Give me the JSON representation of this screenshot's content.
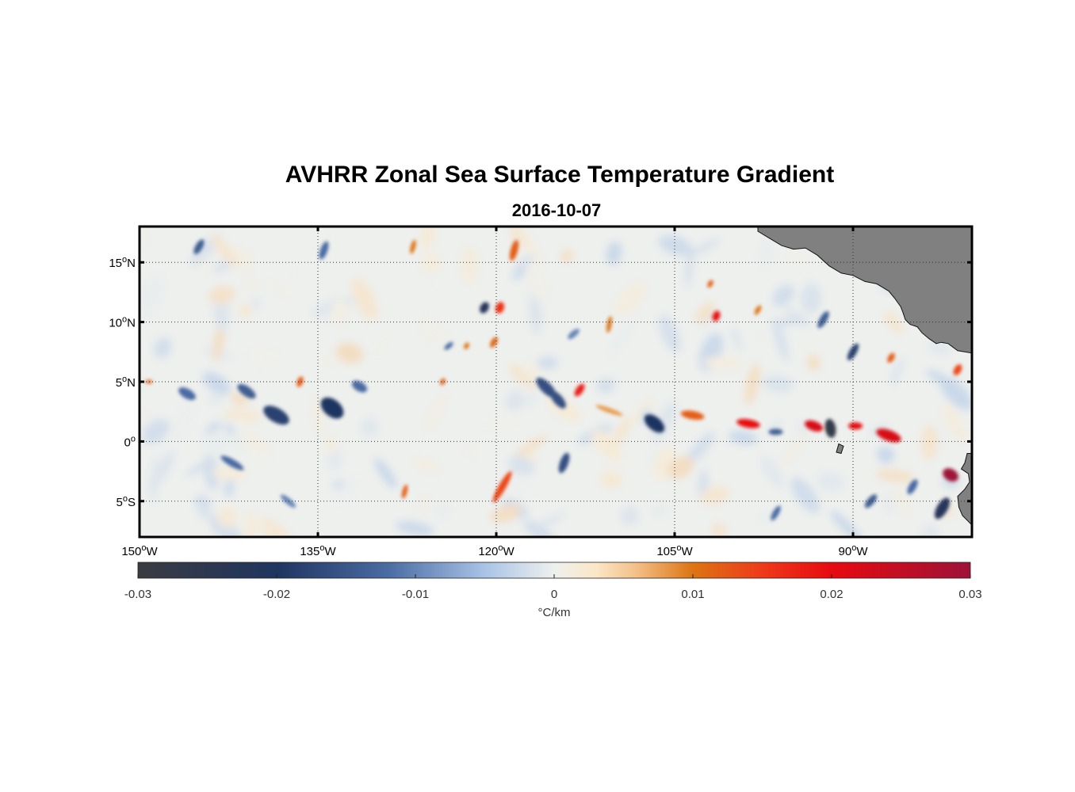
{
  "title": "AVHRR Zonal Sea Surface Temperature Gradient",
  "subtitle": "2016-10-07",
  "map": {
    "lon_range": [
      -150,
      -80
    ],
    "lat_range": [
      -8,
      18
    ],
    "lat_ticks": [
      {
        "value": 15,
        "label": "15",
        "hemi": "N"
      },
      {
        "value": 10,
        "label": "10",
        "hemi": "N"
      },
      {
        "value": 5,
        "label": "5",
        "hemi": "N"
      },
      {
        "value": 0,
        "label": "0",
        "hemi": ""
      },
      {
        "value": -5,
        "label": "5",
        "hemi": "S"
      }
    ],
    "lon_ticks": [
      {
        "value": -150,
        "label": "150",
        "hemi": "W"
      },
      {
        "value": -135,
        "label": "135",
        "hemi": "W"
      },
      {
        "value": -120,
        "label": "120",
        "hemi": "W"
      },
      {
        "value": -105,
        "label": "105",
        "hemi": "W"
      },
      {
        "value": -90,
        "label": "90",
        "hemi": "W"
      }
    ],
    "grid": "dotted",
    "land_color": "#808080",
    "features": [
      {
        "lon": -138.5,
        "lat": 2.2,
        "value": -0.018,
        "w": 2.4,
        "h": 1.2,
        "angle": -30
      },
      {
        "lon": -133.8,
        "lat": 2.8,
        "value": -0.02,
        "w": 2.2,
        "h": 1.4,
        "angle": -40
      },
      {
        "lon": -131.5,
        "lat": 4.6,
        "value": -0.012,
        "w": 1.4,
        "h": 0.8,
        "angle": -30
      },
      {
        "lon": -141.0,
        "lat": 4.2,
        "value": -0.014,
        "w": 1.8,
        "h": 0.8,
        "angle": -35
      },
      {
        "lon": -146.0,
        "lat": 4.0,
        "value": -0.012,
        "w": 1.6,
        "h": 0.8,
        "angle": -30
      },
      {
        "lon": -136.5,
        "lat": 5.0,
        "value": 0.012,
        "w": 0.9,
        "h": 0.5,
        "angle": 70
      },
      {
        "lon": -121.0,
        "lat": 11.2,
        "value": -0.022,
        "w": 1.0,
        "h": 0.7,
        "angle": 60
      },
      {
        "lon": -119.7,
        "lat": 11.2,
        "value": 0.016,
        "w": 1.0,
        "h": 0.7,
        "angle": 70
      },
      {
        "lon": -120.2,
        "lat": 8.3,
        "value": 0.011,
        "w": 1.0,
        "h": 0.5,
        "angle": 60
      },
      {
        "lon": -122.5,
        "lat": 8.0,
        "value": 0.01,
        "w": 0.6,
        "h": 0.4,
        "angle": 60
      },
      {
        "lon": -118.5,
        "lat": 16.0,
        "value": 0.012,
        "w": 1.8,
        "h": 0.6,
        "angle": 75
      },
      {
        "lon": -115.8,
        "lat": 4.5,
        "value": -0.016,
        "w": 2.2,
        "h": 0.9,
        "angle": -45
      },
      {
        "lon": -114.8,
        "lat": 3.5,
        "value": -0.016,
        "w": 1.8,
        "h": 0.8,
        "angle": -50
      },
      {
        "lon": -113.0,
        "lat": 4.3,
        "value": 0.018,
        "w": 1.2,
        "h": 0.6,
        "angle": 55
      },
      {
        "lon": -110.5,
        "lat": 2.6,
        "value": 0.008,
        "w": 2.4,
        "h": 0.4,
        "angle": -20
      },
      {
        "lon": -119.5,
        "lat": -3.8,
        "value": 0.014,
        "w": 3.0,
        "h": 0.6,
        "angle": 60
      },
      {
        "lon": -114.3,
        "lat": -1.8,
        "value": -0.016,
        "w": 1.8,
        "h": 0.7,
        "angle": 70
      },
      {
        "lon": -106.7,
        "lat": 1.5,
        "value": -0.02,
        "w": 2.0,
        "h": 1.1,
        "angle": -40
      },
      {
        "lon": -103.5,
        "lat": 2.2,
        "value": 0.012,
        "w": 2.0,
        "h": 0.7,
        "angle": -10
      },
      {
        "lon": -98.8,
        "lat": 1.5,
        "value": 0.02,
        "w": 2.0,
        "h": 0.7,
        "angle": -10
      },
      {
        "lon": -96.5,
        "lat": 0.8,
        "value": -0.014,
        "w": 1.2,
        "h": 0.5,
        "angle": 0
      },
      {
        "lon": -93.3,
        "lat": 1.3,
        "value": 0.022,
        "w": 1.6,
        "h": 0.8,
        "angle": -20
      },
      {
        "lon": -91.9,
        "lat": 1.1,
        "value": -0.028,
        "w": 0.9,
        "h": 1.6,
        "angle": 10
      },
      {
        "lon": -89.8,
        "lat": 1.3,
        "value": 0.02,
        "w": 1.2,
        "h": 0.6,
        "angle": 0
      },
      {
        "lon": -87.0,
        "lat": 0.5,
        "value": 0.022,
        "w": 2.2,
        "h": 0.9,
        "angle": -20
      },
      {
        "lon": -81.8,
        "lat": -2.8,
        "value": 0.03,
        "w": 1.4,
        "h": 1.0,
        "angle": -30
      },
      {
        "lon": -82.5,
        "lat": -5.6,
        "value": -0.022,
        "w": 2.0,
        "h": 0.9,
        "angle": 60
      },
      {
        "lon": -85.0,
        "lat": -3.8,
        "value": -0.012,
        "w": 1.4,
        "h": 0.6,
        "angle": 60
      },
      {
        "lon": -101.5,
        "lat": 10.5,
        "value": 0.02,
        "w": 0.9,
        "h": 0.6,
        "angle": 70
      },
      {
        "lon": -102.0,
        "lat": 13.2,
        "value": 0.012,
        "w": 0.7,
        "h": 0.4,
        "angle": 60
      },
      {
        "lon": -90.0,
        "lat": 7.5,
        "value": -0.018,
        "w": 1.6,
        "h": 0.6,
        "angle": 60
      },
      {
        "lon": -86.8,
        "lat": 7.0,
        "value": 0.012,
        "w": 0.9,
        "h": 0.5,
        "angle": 60
      },
      {
        "lon": -81.2,
        "lat": 6.0,
        "value": 0.014,
        "w": 1.0,
        "h": 0.6,
        "angle": 60
      },
      {
        "lon": -92.5,
        "lat": 10.2,
        "value": -0.014,
        "w": 1.6,
        "h": 0.6,
        "angle": 60
      },
      {
        "lon": -98.0,
        "lat": 11.0,
        "value": 0.01,
        "w": 0.9,
        "h": 0.4,
        "angle": 60
      },
      {
        "lon": -110.5,
        "lat": 9.8,
        "value": 0.01,
        "w": 1.4,
        "h": 0.4,
        "angle": 80
      },
      {
        "lon": -113.5,
        "lat": 9.0,
        "value": -0.01,
        "w": 1.2,
        "h": 0.5,
        "angle": 40
      },
      {
        "lon": -145.0,
        "lat": 16.3,
        "value": -0.014,
        "w": 1.4,
        "h": 0.6,
        "angle": 60
      },
      {
        "lon": -134.5,
        "lat": 16.0,
        "value": -0.012,
        "w": 1.6,
        "h": 0.6,
        "angle": 70
      },
      {
        "lon": -127.0,
        "lat": 16.3,
        "value": 0.01,
        "w": 1.2,
        "h": 0.4,
        "angle": 75
      },
      {
        "lon": -127.7,
        "lat": -4.2,
        "value": 0.012,
        "w": 1.2,
        "h": 0.4,
        "angle": 75
      },
      {
        "lon": -142.2,
        "lat": -1.8,
        "value": -0.012,
        "w": 2.2,
        "h": 0.6,
        "angle": -30
      },
      {
        "lon": -137.5,
        "lat": -5.0,
        "value": -0.01,
        "w": 1.6,
        "h": 0.5,
        "angle": -40
      },
      {
        "lon": -96.5,
        "lat": -6.0,
        "value": -0.012,
        "w": 1.4,
        "h": 0.5,
        "angle": 60
      },
      {
        "lon": -88.5,
        "lat": -5.0,
        "value": -0.014,
        "w": 1.4,
        "h": 0.6,
        "angle": 50
      },
      {
        "lon": -124.5,
        "lat": 5.0,
        "value": 0.012,
        "w": 0.6,
        "h": 0.4,
        "angle": 60
      },
      {
        "lon": -124.0,
        "lat": 8.0,
        "value": -0.012,
        "w": 0.9,
        "h": 0.4,
        "angle": 40
      },
      {
        "lon": -149.2,
        "lat": 5.0,
        "value": 0.012,
        "w": 0.6,
        "h": 0.3,
        "angle": 0
      }
    ]
  },
  "colorbar": {
    "label": "°C/km",
    "min": -0.03,
    "max": 0.03,
    "ticks": [
      {
        "value": -0.03,
        "label": "-0.03"
      },
      {
        "value": -0.02,
        "label": "-0.02"
      },
      {
        "value": -0.01,
        "label": "-0.01"
      },
      {
        "value": 0,
        "label": "0"
      },
      {
        "value": 0.01,
        "label": "0.01"
      },
      {
        "value": 0.02,
        "label": "0.02"
      },
      {
        "value": 0.03,
        "label": "0.03"
      }
    ],
    "colormap": [
      {
        "value": -0.03,
        "color": "#3b3b41"
      },
      {
        "value": -0.02,
        "color": "#1f3560"
      },
      {
        "value": -0.012,
        "color": "#4a6ba3"
      },
      {
        "value": -0.005,
        "color": "#a9c3e6"
      },
      {
        "value": 0.0,
        "color": "#eef0ee"
      },
      {
        "value": 0.003,
        "color": "#fbe7c8"
      },
      {
        "value": 0.006,
        "color": "#f3be86"
      },
      {
        "value": 0.01,
        "color": "#dd7412"
      },
      {
        "value": 0.015,
        "color": "#ee3a1a"
      },
      {
        "value": 0.02,
        "color": "#e70a10"
      },
      {
        "value": 0.03,
        "color": "#9d1238"
      }
    ]
  }
}
